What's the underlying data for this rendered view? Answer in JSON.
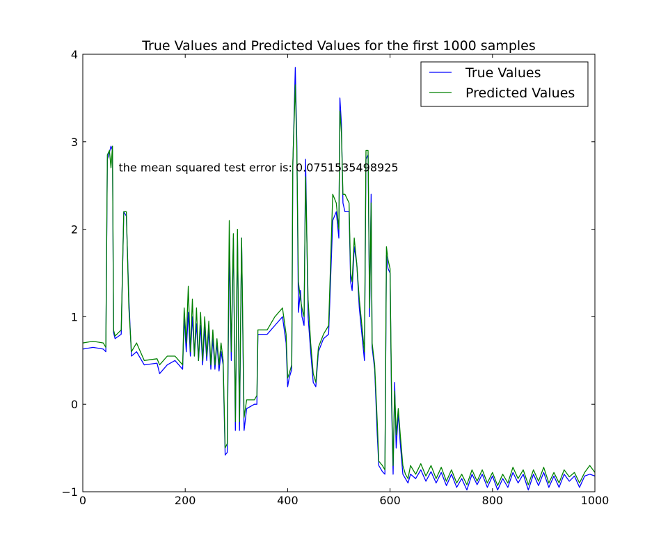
{
  "chart_data": {
    "type": "line",
    "title": "True Values and Predicted Values for the first 1000 samples",
    "xlabel": "",
    "ylabel": "",
    "xlim": [
      0,
      1000
    ],
    "ylim": [
      -1,
      4
    ],
    "x_ticks": [
      0,
      200,
      400,
      600,
      800,
      1000
    ],
    "x_tick_labels": [
      "0",
      "200",
      "400",
      "600",
      "800",
      "1000"
    ],
    "y_ticks": [
      -1,
      0,
      1,
      2,
      3,
      4
    ],
    "y_tick_labels": [
      "−1",
      "0",
      "1",
      "2",
      "3",
      "4"
    ],
    "grid": false,
    "legend_position": "top-right",
    "annotation": {
      "text": "the mean squared test error is: 0.0751535498925",
      "x": 70,
      "y": 2.7
    },
    "series": [
      {
        "name": "True Values",
        "color": "#0000ff",
        "points": [
          [
            0,
            0.63
          ],
          [
            20,
            0.65
          ],
          [
            40,
            0.63
          ],
          [
            45,
            0.6
          ],
          [
            48,
            2.8
          ],
          [
            52,
            2.88
          ],
          [
            55,
            2.95
          ],
          [
            58,
            2.9
          ],
          [
            60,
            0.82
          ],
          [
            63,
            0.75
          ],
          [
            75,
            0.8
          ],
          [
            80,
            2.2
          ],
          [
            85,
            2.15
          ],
          [
            90,
            1.2
          ],
          [
            95,
            0.55
          ],
          [
            105,
            0.6
          ],
          [
            120,
            0.45
          ],
          [
            145,
            0.47
          ],
          [
            150,
            0.35
          ],
          [
            165,
            0.45
          ],
          [
            180,
            0.5
          ],
          [
            195,
            0.4
          ],
          [
            198,
            1.0
          ],
          [
            202,
            0.6
          ],
          [
            206,
            1.05
          ],
          [
            210,
            0.55
          ],
          [
            214,
            1.0
          ],
          [
            218,
            0.55
          ],
          [
            222,
            0.92
          ],
          [
            226,
            0.5
          ],
          [
            230,
            0.9
          ],
          [
            234,
            0.45
          ],
          [
            238,
            0.88
          ],
          [
            242,
            0.5
          ],
          [
            246,
            0.85
          ],
          [
            250,
            0.4
          ],
          [
            254,
            0.75
          ],
          [
            258,
            0.4
          ],
          [
            262,
            0.7
          ],
          [
            266,
            0.38
          ],
          [
            270,
            0.6
          ],
          [
            274,
            0.45
          ],
          [
            278,
            -0.58
          ],
          [
            282,
            -0.55
          ],
          [
            286,
            1.8
          ],
          [
            290,
            0.5
          ],
          [
            294,
            1.9
          ],
          [
            298,
            -0.3
          ],
          [
            302,
            1.95
          ],
          [
            306,
            -0.3
          ],
          [
            310,
            1.9
          ],
          [
            315,
            -0.3
          ],
          [
            320,
            -0.05
          ],
          [
            335,
            0.0
          ],
          [
            340,
            0.0
          ],
          [
            342,
            0.8
          ],
          [
            360,
            0.8
          ],
          [
            375,
            0.9
          ],
          [
            390,
            1.0
          ],
          [
            397,
            0.7
          ],
          [
            400,
            0.2
          ],
          [
            403,
            0.3
          ],
          [
            408,
            0.4
          ],
          [
            410,
            2.7
          ],
          [
            415,
            3.85
          ],
          [
            418,
            3.0
          ],
          [
            421,
            1.05
          ],
          [
            425,
            1.3
          ],
          [
            428,
            1.0
          ],
          [
            432,
            0.9
          ],
          [
            435,
            2.8
          ],
          [
            440,
            1.0
          ],
          [
            445,
            0.6
          ],
          [
            450,
            0.25
          ],
          [
            455,
            0.2
          ],
          [
            460,
            0.6
          ],
          [
            470,
            0.75
          ],
          [
            480,
            0.8
          ],
          [
            488,
            2.1
          ],
          [
            495,
            2.2
          ],
          [
            500,
            1.9
          ],
          [
            502,
            3.5
          ],
          [
            505,
            3.2
          ],
          [
            508,
            2.3
          ],
          [
            512,
            2.2
          ],
          [
            520,
            2.2
          ],
          [
            523,
            1.4
          ],
          [
            526,
            1.3
          ],
          [
            530,
            1.8
          ],
          [
            535,
            1.6
          ],
          [
            540,
            1.1
          ],
          [
            545,
            0.8
          ],
          [
            550,
            0.5
          ],
          [
            553,
            2.8
          ],
          [
            557,
            2.85
          ],
          [
            560,
            1.0
          ],
          [
            563,
            2.4
          ],
          [
            565,
            0.65
          ],
          [
            570,
            0.4
          ],
          [
            575,
            -0.35
          ],
          [
            578,
            -0.7
          ],
          [
            585,
            -0.77
          ],
          [
            590,
            -0.8
          ],
          [
            593,
            1.7
          ],
          [
            596,
            1.55
          ],
          [
            600,
            1.5
          ],
          [
            603,
            0.0
          ],
          [
            606,
            -0.8
          ],
          [
            609,
            0.25
          ],
          [
            612,
            -0.5
          ],
          [
            616,
            -0.1
          ],
          [
            620,
            -0.45
          ],
          [
            625,
            -0.8
          ],
          [
            630,
            -0.85
          ],
          [
            635,
            -0.9
          ],
          [
            640,
            -0.8
          ],
          [
            650,
            -0.85
          ],
          [
            660,
            -0.75
          ],
          [
            670,
            -0.88
          ],
          [
            680,
            -0.77
          ],
          [
            690,
            -0.9
          ],
          [
            700,
            -0.78
          ],
          [
            710,
            -0.93
          ],
          [
            720,
            -0.8
          ],
          [
            730,
            -0.95
          ],
          [
            740,
            -0.85
          ],
          [
            750,
            -0.98
          ],
          [
            760,
            -0.8
          ],
          [
            770,
            -0.92
          ],
          [
            780,
            -0.8
          ],
          [
            790,
            -0.95
          ],
          [
            800,
            -0.82
          ],
          [
            810,
            -0.98
          ],
          [
            820,
            -0.85
          ],
          [
            830,
            -0.95
          ],
          [
            840,
            -0.78
          ],
          [
            850,
            -0.9
          ],
          [
            860,
            -0.8
          ],
          [
            870,
            -0.98
          ],
          [
            880,
            -0.8
          ],
          [
            890,
            -0.93
          ],
          [
            900,
            -0.78
          ],
          [
            910,
            -0.95
          ],
          [
            920,
            -0.82
          ],
          [
            930,
            -0.95
          ],
          [
            940,
            -0.8
          ],
          [
            950,
            -0.88
          ],
          [
            960,
            -0.82
          ],
          [
            970,
            -0.95
          ],
          [
            980,
            -0.82
          ],
          [
            990,
            -0.8
          ],
          [
            1000,
            -0.82
          ]
        ]
      },
      {
        "name": "Predicted Values",
        "color": "#008000",
        "points": [
          [
            0,
            0.7
          ],
          [
            20,
            0.72
          ],
          [
            40,
            0.7
          ],
          [
            45,
            0.65
          ],
          [
            48,
            2.85
          ],
          [
            52,
            2.9
          ],
          [
            55,
            2.7
          ],
          [
            58,
            2.95
          ],
          [
            60,
            0.85
          ],
          [
            63,
            0.78
          ],
          [
            75,
            0.85
          ],
          [
            80,
            2.2
          ],
          [
            85,
            2.2
          ],
          [
            90,
            1.1
          ],
          [
            95,
            0.6
          ],
          [
            105,
            0.7
          ],
          [
            120,
            0.5
          ],
          [
            145,
            0.52
          ],
          [
            150,
            0.45
          ],
          [
            165,
            0.55
          ],
          [
            180,
            0.55
          ],
          [
            195,
            0.45
          ],
          [
            198,
            1.1
          ],
          [
            202,
            0.7
          ],
          [
            206,
            1.35
          ],
          [
            210,
            0.6
          ],
          [
            214,
            1.2
          ],
          [
            218,
            0.55
          ],
          [
            222,
            1.1
          ],
          [
            226,
            0.5
          ],
          [
            230,
            1.05
          ],
          [
            234,
            0.5
          ],
          [
            238,
            1.0
          ],
          [
            242,
            0.55
          ],
          [
            246,
            0.95
          ],
          [
            250,
            0.45
          ],
          [
            254,
            0.85
          ],
          [
            258,
            0.45
          ],
          [
            262,
            0.75
          ],
          [
            266,
            0.45
          ],
          [
            270,
            0.7
          ],
          [
            274,
            0.5
          ],
          [
            278,
            -0.5
          ],
          [
            282,
            -0.45
          ],
          [
            286,
            2.1
          ],
          [
            290,
            0.6
          ],
          [
            294,
            1.95
          ],
          [
            298,
            -0.2
          ],
          [
            302,
            2.0
          ],
          [
            306,
            -0.2
          ],
          [
            310,
            1.9
          ],
          [
            315,
            -0.15
          ],
          [
            320,
            0.05
          ],
          [
            335,
            0.05
          ],
          [
            340,
            0.1
          ],
          [
            342,
            0.85
          ],
          [
            360,
            0.85
          ],
          [
            375,
            1.0
          ],
          [
            390,
            1.1
          ],
          [
            397,
            0.8
          ],
          [
            400,
            0.3
          ],
          [
            403,
            0.35
          ],
          [
            408,
            0.45
          ],
          [
            410,
            2.75
          ],
          [
            415,
            3.65
          ],
          [
            418,
            2.9
          ],
          [
            421,
            1.4
          ],
          [
            425,
            1.2
          ],
          [
            428,
            1.1
          ],
          [
            432,
            1.0
          ],
          [
            435,
            2.6
          ],
          [
            440,
            1.2
          ],
          [
            445,
            0.7
          ],
          [
            450,
            0.35
          ],
          [
            455,
            0.25
          ],
          [
            460,
            0.65
          ],
          [
            470,
            0.8
          ],
          [
            480,
            0.9
          ],
          [
            488,
            2.4
          ],
          [
            495,
            2.3
          ],
          [
            500,
            2.0
          ],
          [
            502,
            3.35
          ],
          [
            505,
            3.1
          ],
          [
            508,
            2.4
          ],
          [
            512,
            2.4
          ],
          [
            520,
            2.3
          ],
          [
            523,
            1.5
          ],
          [
            526,
            1.4
          ],
          [
            530,
            1.9
          ],
          [
            535,
            1.6
          ],
          [
            540,
            1.2
          ],
          [
            545,
            0.9
          ],
          [
            550,
            0.6
          ],
          [
            553,
            2.9
          ],
          [
            557,
            2.9
          ],
          [
            560,
            1.1
          ],
          [
            563,
            2.3
          ],
          [
            565,
            0.7
          ],
          [
            570,
            0.45
          ],
          [
            575,
            -0.2
          ],
          [
            578,
            -0.65
          ],
          [
            585,
            -0.7
          ],
          [
            590,
            -0.75
          ],
          [
            593,
            1.8
          ],
          [
            596,
            1.65
          ],
          [
            600,
            1.55
          ],
          [
            603,
            0.1
          ],
          [
            606,
            -0.7
          ],
          [
            609,
            0.15
          ],
          [
            612,
            -0.35
          ],
          [
            616,
            -0.05
          ],
          [
            620,
            -0.35
          ],
          [
            625,
            -0.7
          ],
          [
            630,
            -0.8
          ],
          [
            635,
            -0.85
          ],
          [
            640,
            -0.7
          ],
          [
            650,
            -0.8
          ],
          [
            660,
            -0.68
          ],
          [
            670,
            -0.82
          ],
          [
            680,
            -0.7
          ],
          [
            690,
            -0.85
          ],
          [
            700,
            -0.72
          ],
          [
            710,
            -0.88
          ],
          [
            720,
            -0.75
          ],
          [
            730,
            -0.9
          ],
          [
            740,
            -0.8
          ],
          [
            750,
            -0.92
          ],
          [
            760,
            -0.75
          ],
          [
            770,
            -0.88
          ],
          [
            780,
            -0.75
          ],
          [
            790,
            -0.9
          ],
          [
            800,
            -0.78
          ],
          [
            810,
            -0.93
          ],
          [
            820,
            -0.8
          ],
          [
            830,
            -0.9
          ],
          [
            840,
            -0.72
          ],
          [
            850,
            -0.85
          ],
          [
            860,
            -0.75
          ],
          [
            870,
            -0.92
          ],
          [
            880,
            -0.75
          ],
          [
            890,
            -0.88
          ],
          [
            900,
            -0.72
          ],
          [
            910,
            -0.9
          ],
          [
            920,
            -0.78
          ],
          [
            930,
            -0.9
          ],
          [
            940,
            -0.75
          ],
          [
            950,
            -0.83
          ],
          [
            960,
            -0.78
          ],
          [
            970,
            -0.9
          ],
          [
            980,
            -0.78
          ],
          [
            990,
            -0.7
          ],
          [
            1000,
            -0.78
          ]
        ]
      }
    ]
  }
}
